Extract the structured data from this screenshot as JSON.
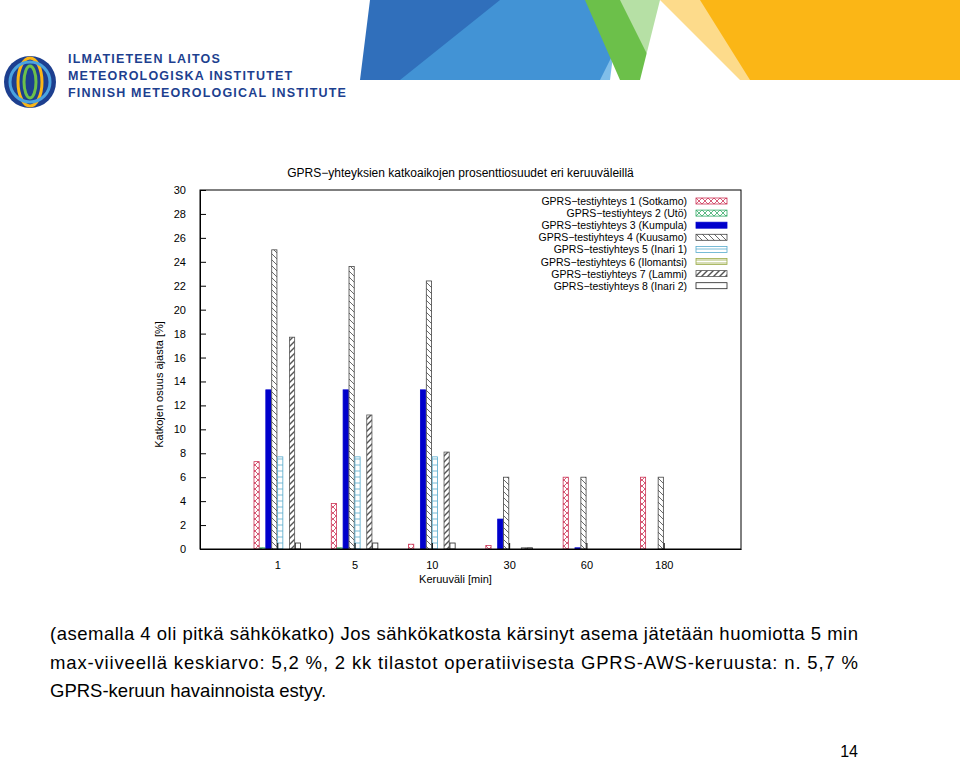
{
  "header": {
    "logo_lines": [
      "ILMATIETEEN LAITOS",
      "METEOROLOGISKA INSTITUTET",
      "FINNISH METEOROLOGICAL INSTITUTE"
    ]
  },
  "chart_data": {
    "type": "bar",
    "title": "GPRS−yhteyksien katkoaikojen prosenttiosuudet eri keruuväleillä",
    "x_label": "Keruuväli [min]",
    "y_label": "Katkojen osuus ajasta [%]",
    "categories": [
      "1",
      "5",
      "10",
      "30",
      "60",
      "180"
    ],
    "series": [
      {
        "name": "GPRS−testiyhteys 1 (Sotkamo)",
        "color": "#cc3355",
        "values": [
          7.3,
          3.8,
          0.4,
          0.3,
          6.0,
          6.0
        ]
      },
      {
        "name": "GPRS−testiyhteys 2 (Utö)",
        "color": "#33aa66",
        "values": [
          0.1,
          0.1,
          0,
          0,
          0,
          0
        ]
      },
      {
        "name": "GPRS−testiyhteys 3 (Kumpula)",
        "color": "#0000cc",
        "values": [
          13.3,
          13.3,
          13.3,
          2.5,
          0.1,
          0
        ]
      },
      {
        "name": "GPRS−testiyhteys 4 (Kuusamo)",
        "color": "#444444",
        "values": [
          25.0,
          23.6,
          22.4,
          6.0,
          6.0,
          6.0
        ]
      },
      {
        "name": "GPRS−testiyhteys 5 (Inari 1)",
        "color": "#55aacc",
        "values": [
          7.7,
          7.7,
          7.7,
          0,
          0,
          0
        ]
      },
      {
        "name": "GPRS−testiyhteys 6 (Ilomantsi)",
        "color": "#99aa44",
        "values": [
          0,
          0,
          0,
          0,
          0,
          0
        ]
      },
      {
        "name": "GPRS−testiyhteys 7 (Lammi)",
        "color": "#555555",
        "values": [
          17.7,
          11.2,
          8.1,
          0.1,
          0,
          0
        ]
      },
      {
        "name": "GPRS−testiyhteys 8 (Inari 2)",
        "color": "#222222",
        "values": [
          0.5,
          0.5,
          0.5,
          0.1,
          0,
          0
        ]
      }
    ],
    "ylim": [
      0,
      30
    ],
    "yticks": [
      0,
      2,
      4,
      6,
      8,
      10,
      12,
      14,
      16,
      18,
      20,
      22,
      24,
      26,
      28,
      30
    ],
    "legend": "top-right",
    "grid": false
  },
  "caption": {
    "lines": [
      "(asemalla 4 oli pitkä sähkökatko) Jos sähkökatkosta kärsinyt asema jätetään huomiotta 5 min",
      "max-viiveellä keskiarvo: 5,2 %, 2 kk tilastot operatiivisesta GPRS-AWS-keruusta: n. 5,7 %",
      "GPRS-keruun havainnoista estyy."
    ]
  },
  "page_number": "14"
}
